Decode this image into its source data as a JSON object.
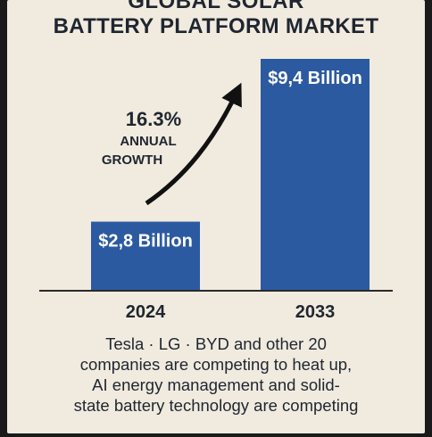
{
  "title_line1": "GLOBAL SOLAR",
  "title_line2": "BATTERY PLATFORM MARKET",
  "chart_data": {
    "type": "bar",
    "categories": [
      "2024",
      "2033"
    ],
    "values": [
      2.8,
      9.4
    ],
    "value_labels": [
      "$2,8 Billion",
      "$9,4 Billion"
    ],
    "ylim": [
      0,
      9.4
    ],
    "grid": false,
    "bar_color": "#2c5aa0",
    "annotation": {
      "percent": "16.3%",
      "line1": "ANNUAL",
      "line2": "GROWTH"
    }
  },
  "caption_lines": [
    "Tesla · LG · BYD and other 20",
    "companies are competing to heat up,",
    "AI energy management and solid-",
    "state battery technology are competing"
  ]
}
